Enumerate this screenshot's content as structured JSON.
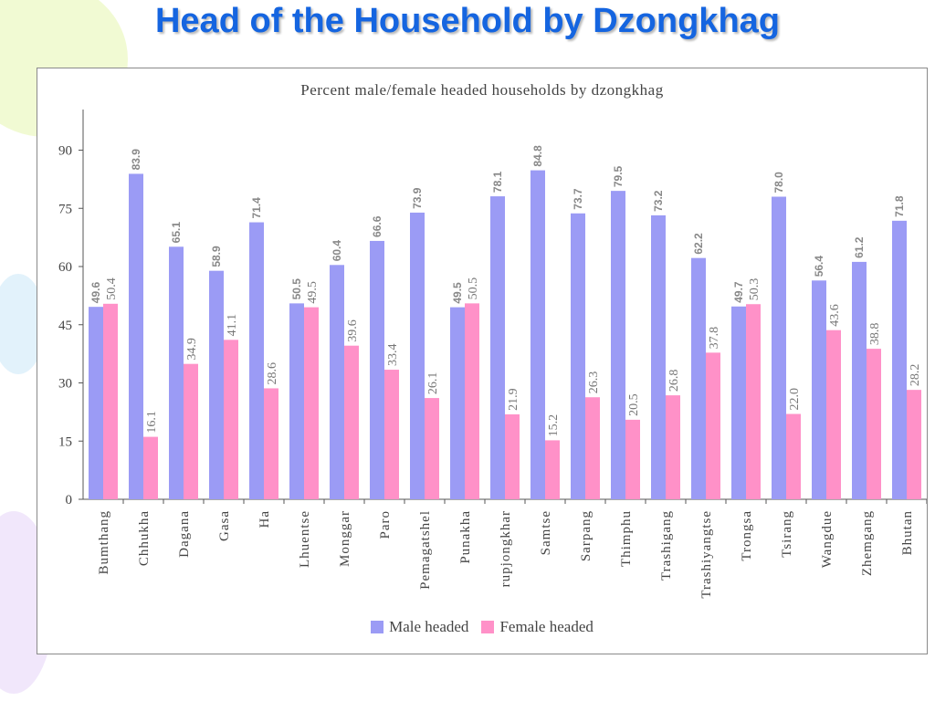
{
  "slide": {
    "title": "Head of the Household by Dzongkhag"
  },
  "colors": {
    "title": "#1565e0",
    "male": "#9b9bf5",
    "female": "#ff91c8",
    "axis": "#555555",
    "value_label": "#888888"
  },
  "chart_data": {
    "type": "bar",
    "title": "Percent male/female headed households by dzongkhag",
    "xlabel": "",
    "ylabel": "",
    "ylim": [
      0,
      100
    ],
    "yticks": [
      0,
      15,
      30,
      45,
      60,
      75,
      90
    ],
    "grid": false,
    "legend_position": "bottom",
    "categories": [
      "Bumthang",
      "Chhukha",
      "Dagana",
      "Gasa",
      "Ha",
      "Lhuentse",
      "Monggar",
      "Paro",
      "Pemagatshel",
      "Punakha",
      "Samdrupjongkhar",
      "Samtse",
      "Sarpang",
      "Thimphu",
      "Trashigang",
      "Trashiyangtse",
      "Trongsa",
      "Tsirang",
      "Wangdue",
      "Zhemgang",
      "Bhutan"
    ],
    "category_display": [
      "Bumthang",
      "Chhukha",
      "Dagana",
      "Gasa",
      "Ha",
      "Lhuentse",
      "Monggar",
      "Paro",
      "Pemagatshel",
      "Punakha",
      "rupjongkhar",
      "Samtse",
      "Sarpang",
      "Thimphu",
      "Trashigang",
      "Trashiyangtse",
      "Trongsa",
      "Tsirang",
      "Wangdue",
      "Zhemgang",
      "Bhutan"
    ],
    "series": [
      {
        "name": "Male headed",
        "values": [
          49.6,
          83.9,
          65.1,
          58.9,
          71.4,
          50.5,
          60.4,
          66.6,
          73.9,
          49.5,
          78.1,
          84.8,
          73.7,
          79.5,
          73.2,
          62.2,
          49.7,
          78.0,
          56.4,
          61.2,
          71.8
        ],
        "labels": [
          "49.6",
          "83.9",
          "65.1",
          "58.9",
          "71.4",
          "50.5",
          "60.4",
          "66.6",
          "73.9",
          "49.5",
          "78.1",
          "84.8",
          "73.7",
          "79.5",
          "73.2",
          "62.2",
          "49.7",
          "78.0",
          "56.4",
          "61.2",
          "71.8"
        ]
      },
      {
        "name": "Female headed",
        "values": [
          50.4,
          16.1,
          34.9,
          41.1,
          28.6,
          49.5,
          39.6,
          33.4,
          26.1,
          50.5,
          21.9,
          15.2,
          26.3,
          20.5,
          26.8,
          37.8,
          50.3,
          22.0,
          43.6,
          38.8,
          28.2
        ],
        "labels": [
          "50.4",
          "16.1",
          "34.9",
          "41.1",
          "28.6",
          "49.5",
          "39.6",
          "33.4",
          "26.1",
          "50.5",
          "21.9",
          "15.2",
          "26.3",
          "20.5",
          "26.8",
          "37.8",
          "50.3",
          "22.0",
          "43.6",
          "38.8",
          "28.2"
        ]
      }
    ]
  }
}
